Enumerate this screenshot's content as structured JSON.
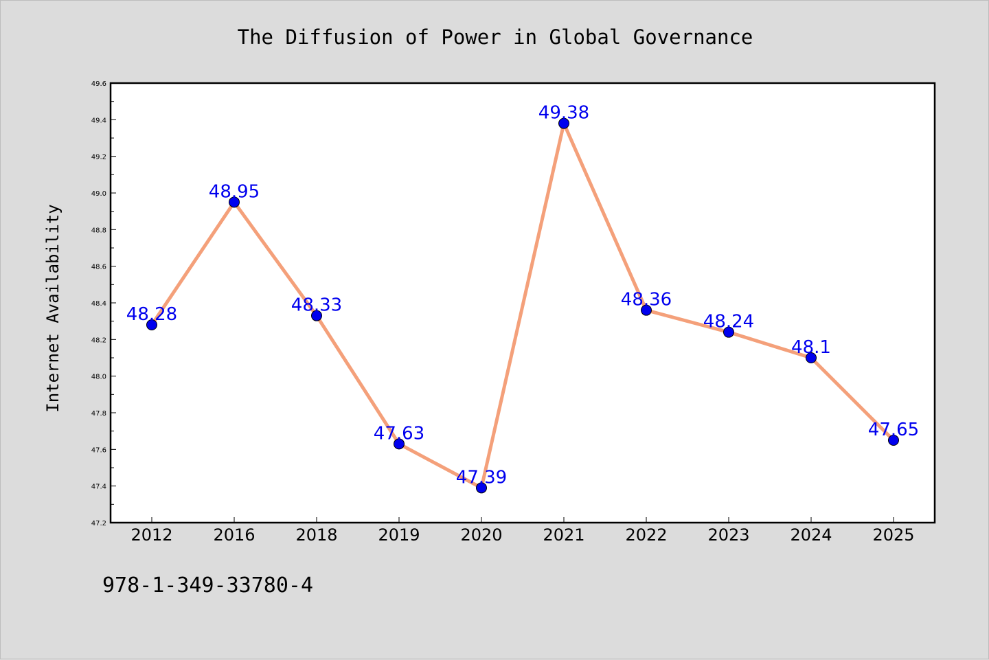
{
  "chart_data": {
    "type": "line",
    "title": "The Diffusion of Power in Global Governance",
    "xlabel": "",
    "ylabel": "Internet Availability",
    "categories": [
      "2012",
      "2016",
      "2018",
      "2019",
      "2020",
      "2021",
      "2022",
      "2023",
      "2024",
      "2025"
    ],
    "values": [
      48.28,
      48.95,
      48.33,
      47.63,
      47.39,
      49.38,
      48.36,
      48.24,
      48.1,
      47.65
    ],
    "data_labels": [
      "48.28",
      "48.95",
      "48.33",
      "47.63",
      "47.39",
      "49.38",
      "48.36",
      "48.24",
      "48.1",
      "47.65"
    ],
    "ylim": [
      47.2,
      49.6
    ],
    "yticks": [
      "47.2",
      "47.4",
      "47.6",
      "47.8",
      "48.0",
      "48.2",
      "48.4",
      "48.6",
      "48.8",
      "49.0",
      "49.2",
      "49.4",
      "49.6"
    ],
    "grid": false,
    "legend": "none",
    "colors": {
      "line": "#f4a07a",
      "marker": "#0000ee",
      "label": "#0000ee",
      "plot_background": "#ffffff",
      "figure_background": "#dcdcdc"
    }
  },
  "footer": {
    "isbn": "978-1-349-33780-4"
  }
}
